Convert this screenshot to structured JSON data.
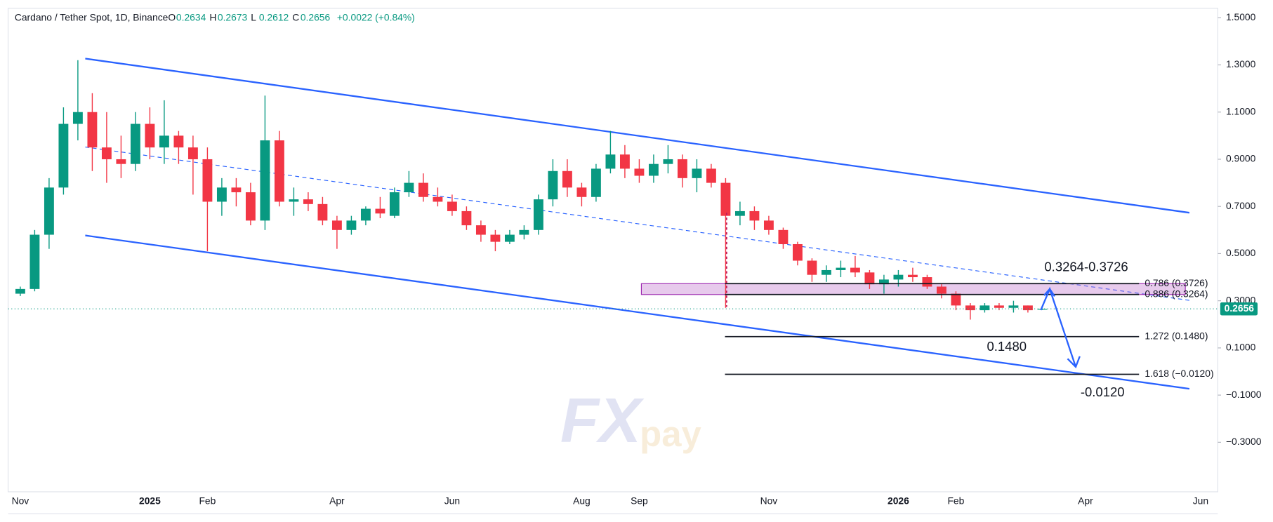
{
  "chart_data": {
    "type": "candlestick",
    "title": "Cardano / Tether Spot, 1D, Binance",
    "ohlc_letters": [
      "O",
      "H",
      "L",
      "C"
    ],
    "change": "+0.0022 (+0.84%)",
    "watermark": [
      "FX",
      "pay"
    ],
    "up_color": "#089981",
    "down_color": "#f23645",
    "categories": [
      "Nov",
      null,
      null,
      null,
      null,
      null,
      null,
      null,
      null,
      "2025",
      null,
      null,
      null,
      "Feb",
      null,
      null,
      null,
      null,
      null,
      null,
      null,
      null,
      "Apr",
      null,
      null,
      null,
      null,
      null,
      null,
      null,
      "Jun",
      null,
      null,
      null,
      null,
      null,
      null,
      null,
      null,
      "Aug",
      null,
      null,
      null,
      "Sep",
      null,
      null,
      null,
      null,
      null,
      null,
      null,
      null,
      "Nov",
      null,
      null,
      null,
      null,
      null,
      null,
      null,
      null,
      "2026",
      null,
      null,
      null,
      "Feb",
      null,
      null,
      null,
      null,
      null,
      null,
      null,
      null,
      "Apr",
      null,
      null,
      null,
      null,
      null,
      null,
      null,
      "Jun",
      null
    ],
    "bold_categories": [
      "2025",
      "2026"
    ],
    "open": [
      0.33,
      0.35,
      0.58,
      0.78,
      1.05,
      1.1,
      0.95,
      0.9,
      0.88,
      1.05,
      0.95,
      1.0,
      0.95,
      0.9,
      0.72,
      0.78,
      0.76,
      0.64,
      0.98,
      0.72,
      0.73,
      0.71,
      0.64,
      0.6,
      0.64,
      0.69,
      0.66,
      0.76,
      0.8,
      0.74,
      0.72,
      0.68,
      0.62,
      0.58,
      0.55,
      0.58,
      0.6,
      0.73,
      0.85,
      0.78,
      0.74,
      0.86,
      0.92,
      0.86,
      0.83,
      0.88,
      0.9,
      0.82,
      0.86,
      0.8,
      0.66,
      0.68,
      0.64,
      0.6,
      0.54,
      0.47,
      0.41,
      0.43,
      0.44,
      0.42,
      0.37,
      0.39,
      0.41,
      0.4,
      0.36,
      0.33,
      0.28,
      0.26,
      0.28,
      0.27,
      0.28,
      0.2634,
      null,
      null,
      null,
      null,
      null,
      null,
      null,
      null,
      null,
      null,
      null,
      null
    ],
    "high": [
      0.36,
      0.6,
      0.82,
      1.12,
      1.32,
      1.18,
      1.1,
      1.0,
      1.1,
      1.12,
      1.15,
      1.02,
      1.0,
      0.95,
      0.82,
      0.82,
      0.8,
      1.17,
      1.02,
      0.78,
      0.76,
      0.74,
      0.66,
      0.66,
      0.7,
      0.74,
      0.78,
      0.85,
      0.84,
      0.78,
      0.75,
      0.7,
      0.64,
      0.6,
      0.6,
      0.62,
      0.75,
      0.9,
      0.9,
      0.8,
      0.88,
      1.02,
      0.96,
      0.9,
      0.92,
      0.96,
      0.92,
      0.9,
      0.88,
      0.82,
      0.72,
      0.7,
      0.66,
      0.61,
      0.55,
      0.48,
      0.45,
      0.47,
      0.49,
      0.43,
      0.41,
      0.43,
      0.44,
      0.41,
      0.37,
      0.34,
      0.29,
      0.29,
      0.29,
      0.3,
      0.28,
      0.2673,
      null,
      null,
      null,
      null,
      null,
      null,
      null,
      null,
      null,
      null,
      null,
      null
    ],
    "low": [
      0.32,
      0.34,
      0.52,
      0.75,
      0.98,
      0.85,
      0.8,
      0.82,
      0.85,
      0.9,
      0.88,
      0.88,
      0.75,
      0.51,
      0.66,
      0.7,
      0.62,
      0.6,
      0.7,
      0.66,
      0.68,
      0.62,
      0.52,
      0.58,
      0.62,
      0.65,
      0.65,
      0.74,
      0.72,
      0.7,
      0.66,
      0.6,
      0.55,
      0.51,
      0.54,
      0.56,
      0.58,
      0.7,
      0.74,
      0.7,
      0.72,
      0.84,
      0.82,
      0.8,
      0.8,
      0.84,
      0.78,
      0.76,
      0.78,
      0.27,
      0.62,
      0.6,
      0.58,
      0.52,
      0.45,
      0.38,
      0.38,
      0.4,
      0.4,
      0.35,
      0.33,
      0.36,
      0.38,
      0.35,
      0.31,
      0.26,
      0.22,
      0.25,
      0.26,
      0.25,
      0.25,
      0.2612,
      null,
      null,
      null,
      null,
      null,
      null,
      null,
      null,
      null,
      null,
      null,
      null
    ],
    "close": [
      0.35,
      0.58,
      0.78,
      1.05,
      1.1,
      0.95,
      0.9,
      0.88,
      1.05,
      0.95,
      1.0,
      0.95,
      0.9,
      0.72,
      0.78,
      0.76,
      0.64,
      0.98,
      0.72,
      0.73,
      0.71,
      0.64,
      0.6,
      0.64,
      0.69,
      0.67,
      0.76,
      0.8,
      0.74,
      0.72,
      0.68,
      0.62,
      0.58,
      0.55,
      0.58,
      0.6,
      0.73,
      0.85,
      0.78,
      0.74,
      0.86,
      0.92,
      0.86,
      0.83,
      0.88,
      0.9,
      0.82,
      0.86,
      0.8,
      0.66,
      0.68,
      0.64,
      0.6,
      0.54,
      0.47,
      0.41,
      0.43,
      0.44,
      0.42,
      0.37,
      0.39,
      0.41,
      0.4,
      0.36,
      0.33,
      0.28,
      0.26,
      0.28,
      0.27,
      0.28,
      0.26,
      0.2656,
      null,
      null,
      null,
      null,
      null,
      null,
      null,
      null,
      null,
      null,
      null,
      null
    ],
    "ylim": [
      -0.51,
      1.54
    ],
    "yticks": [
      {
        "value": 1.5,
        "label": "1.5000"
      },
      {
        "value": 1.3,
        "label": "1.3000"
      },
      {
        "value": 1.1,
        "label": "1.1000"
      },
      {
        "value": 0.9,
        "label": "0.9000"
      },
      {
        "value": 0.7,
        "label": "0.7000"
      },
      {
        "value": 0.5,
        "label": "0.5000"
      },
      {
        "value": 0.3,
        "label": "0.3000"
      },
      {
        "value": 0.1,
        "label": "0.1000"
      },
      {
        "value": -0.1,
        "label": "−0.1000"
      },
      {
        "value": -0.3,
        "label": "−0.3000"
      }
    ],
    "levels": [
      {
        "value": 0.3726,
        "label": "0.786 (0.3726)"
      },
      {
        "value": 0.3264,
        "label": "0.886 (0.3264)"
      },
      {
        "value": 0.148,
        "label": "1.272 (0.1480)"
      },
      {
        "value": -0.012,
        "label": "1.618 (−0.0120)"
      }
    ],
    "annotations": [
      "0.3264-0.3726",
      "0.1480",
      "-0.0120"
    ]
  }
}
